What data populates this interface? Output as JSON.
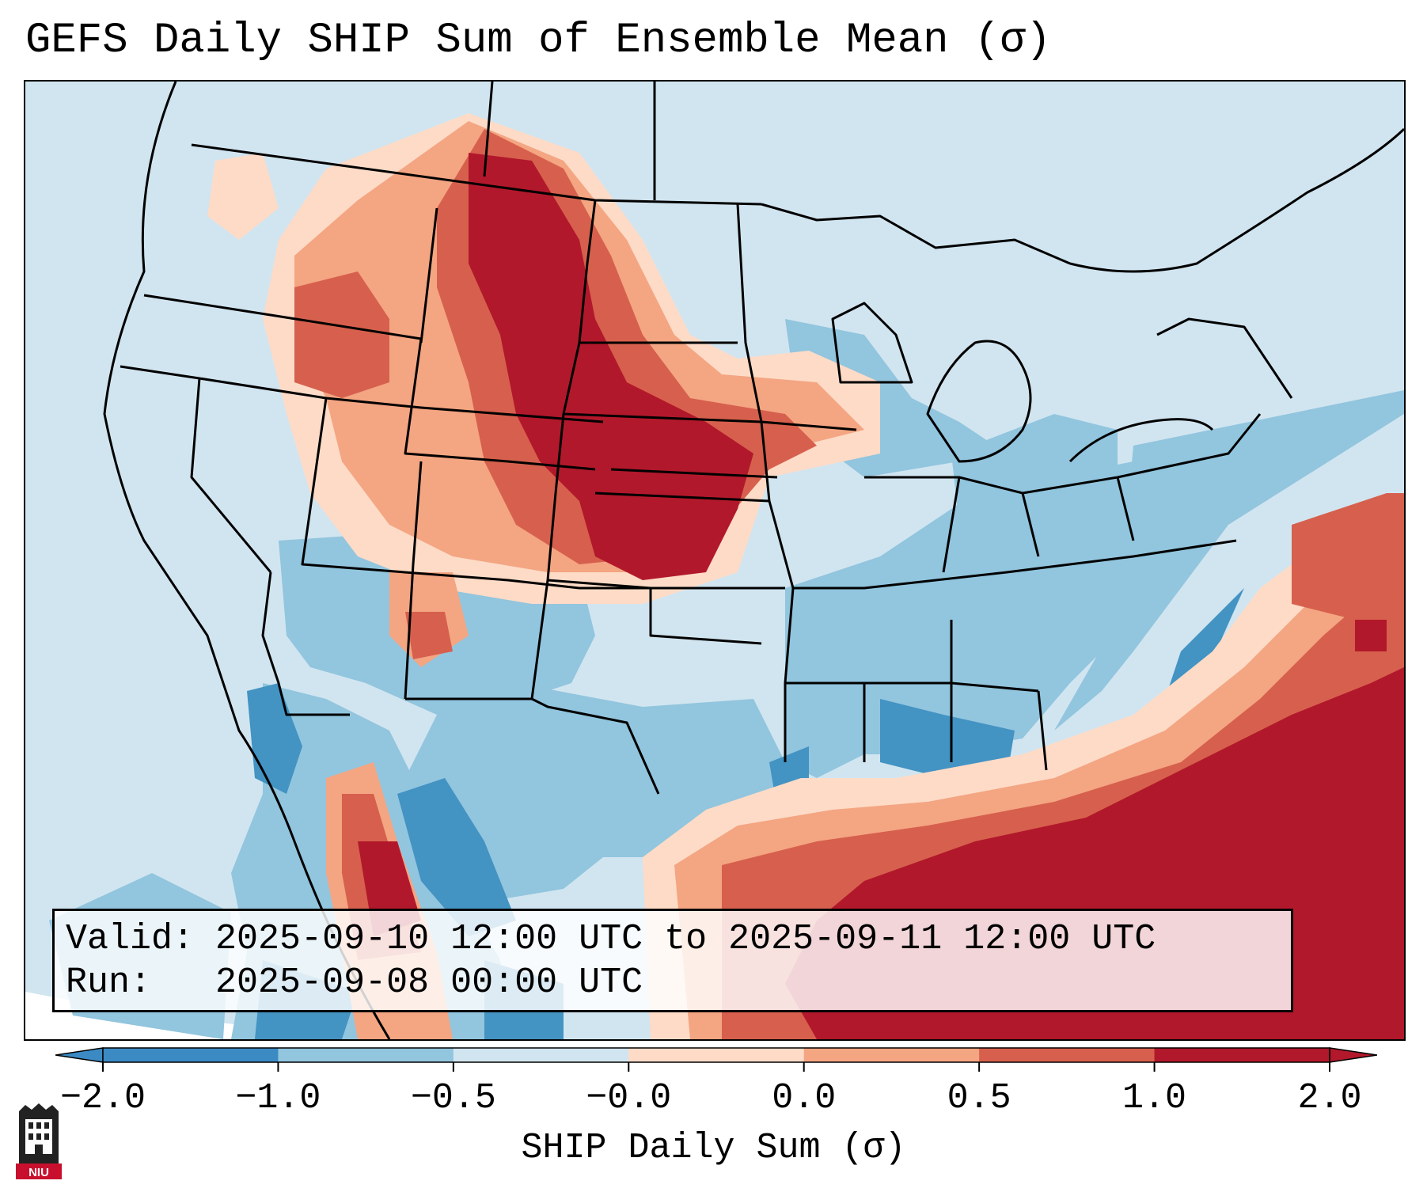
{
  "title": "GEFS Daily SHIP Sum of Ensemble Mean (σ)",
  "info": {
    "valid_label": "Valid:",
    "valid_text": "2025-09-10 12:00 UTC to 2025-09-11 12:00 UTC",
    "run_label": "Run:",
    "run_text": "2025-09-08 00:00 UTC"
  },
  "colorbar": {
    "label": "SHIP Daily Sum (σ)",
    "ticks": [
      "−2.0",
      "−1.0",
      "−0.5",
      "−0.0",
      "0.0",
      "0.5",
      "1.0",
      "2.0"
    ],
    "colors": [
      "#3b8ac4",
      "#92c5de",
      "#d1e5f0",
      "#f7f7f7",
      "#fddbc7",
      "#f4a582",
      "#d6604d",
      "#b2182b"
    ]
  },
  "map_colors": {
    "background": "#d1e5f0",
    "dark_red": "#b2182b",
    "red": "#d6604d",
    "salmon": "#f4a582",
    "pink": "#fddbc7",
    "mid_blue": "#92c5de",
    "dark_blue": "#4393c3"
  },
  "logo": {
    "icon": "niu-logo-icon",
    "text": "NIU"
  }
}
